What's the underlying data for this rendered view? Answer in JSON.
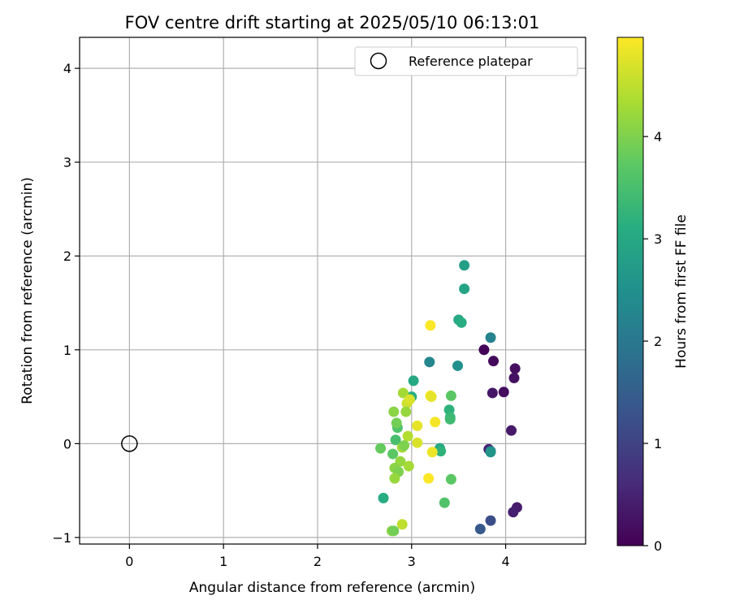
{
  "chart_data": {
    "type": "scatter",
    "title": "FOV centre drift starting at 2025/05/10 06:13:01",
    "xlabel": "Angular distance from reference (arcmin)",
    "ylabel": "Rotation from reference (arcmin)",
    "xlim": [
      -0.53,
      4.85
    ],
    "ylim": [
      -1.07,
      4.33
    ],
    "xticks": [
      "0",
      "1",
      "2",
      "3",
      "4"
    ],
    "yticks": [
      "−1",
      "0",
      "1",
      "2",
      "3",
      "4"
    ],
    "grid": true,
    "legend": {
      "placement": "top-right",
      "entries": [
        "Reference platepar"
      ]
    },
    "reference_point": {
      "x": 0,
      "y": 0,
      "label": "Reference platepar"
    },
    "colorbar": {
      "label": "Hours from first FF file",
      "range": [
        0,
        4.97
      ],
      "ticks": [
        "0",
        "1",
        "2",
        "3",
        "4"
      ],
      "colormap": "viridis"
    },
    "colormap_stops": [
      "#440154",
      "#472c7a",
      "#3b518b",
      "#2c718e",
      "#21908d",
      "#27ad81",
      "#5cc863",
      "#aadc32",
      "#fde725"
    ],
    "points": [
      {
        "x": 3.77,
        "y": 1.0,
        "c": 0.05
      },
      {
        "x": 3.87,
        "y": 0.88,
        "c": 0.1
      },
      {
        "x": 4.1,
        "y": 0.8,
        "c": 0.2
      },
      {
        "x": 4.09,
        "y": 0.7,
        "c": 0.25
      },
      {
        "x": 3.98,
        "y": 0.55,
        "c": 0.15
      },
      {
        "x": 3.86,
        "y": 0.54,
        "c": 0.3
      },
      {
        "x": 4.06,
        "y": 0.14,
        "c": 0.35
      },
      {
        "x": 3.82,
        "y": -0.06,
        "c": 0.5
      },
      {
        "x": 4.12,
        "y": -0.68,
        "c": 0.4
      },
      {
        "x": 4.08,
        "y": -0.73,
        "c": 0.45
      },
      {
        "x": 3.84,
        "y": -0.82,
        "c": 1.2
      },
      {
        "x": 3.73,
        "y": -0.91,
        "c": 1.4
      },
      {
        "x": 3.84,
        "y": -0.08,
        "c": 1.9
      },
      {
        "x": 3.84,
        "y": 1.13,
        "c": 2.2
      },
      {
        "x": 3.19,
        "y": 0.87,
        "c": 2.3
      },
      {
        "x": 3.49,
        "y": 0.83,
        "c": 2.5
      },
      {
        "x": 3.56,
        "y": 1.9,
        "c": 2.8
      },
      {
        "x": 3.56,
        "y": 1.65,
        "c": 2.9
      },
      {
        "x": 3.5,
        "y": 1.32,
        "c": 3.0
      },
      {
        "x": 3.53,
        "y": 1.29,
        "c": 3.1
      },
      {
        "x": 3.02,
        "y": 0.67,
        "c": 3.0
      },
      {
        "x": 3.0,
        "y": 0.5,
        "c": 3.1
      },
      {
        "x": 3.3,
        "y": -0.05,
        "c": 3.0
      },
      {
        "x": 3.31,
        "y": -0.08,
        "c": 3.2
      },
      {
        "x": 3.84,
        "y": -0.09,
        "c": 2.6
      },
      {
        "x": 2.7,
        "y": -0.58,
        "c": 3.1
      },
      {
        "x": 3.4,
        "y": 0.36,
        "c": 3.2
      },
      {
        "x": 3.41,
        "y": 0.28,
        "c": 3.3
      },
      {
        "x": 3.41,
        "y": 0.26,
        "c": 3.4
      },
      {
        "x": 3.42,
        "y": 0.51,
        "c": 3.7
      },
      {
        "x": 3.35,
        "y": -0.63,
        "c": 3.6
      },
      {
        "x": 3.42,
        "y": -0.38,
        "c": 3.7
      },
      {
        "x": 2.67,
        "y": -0.05,
        "c": 3.8
      },
      {
        "x": 2.8,
        "y": -0.11,
        "c": 3.7
      },
      {
        "x": 2.83,
        "y": 0.04,
        "c": 3.5
      },
      {
        "x": 2.85,
        "y": 0.17,
        "c": 3.6
      },
      {
        "x": 2.84,
        "y": 0.22,
        "c": 3.9
      },
      {
        "x": 2.81,
        "y": 0.34,
        "c": 4.1
      },
      {
        "x": 2.91,
        "y": 0.54,
        "c": 4.3
      },
      {
        "x": 2.95,
        "y": 0.43,
        "c": 4.6
      },
      {
        "x": 2.98,
        "y": 0.47,
        "c": 4.7
      },
      {
        "x": 2.94,
        "y": 0.34,
        "c": 4.2
      },
      {
        "x": 2.96,
        "y": 0.08,
        "c": 4.4
      },
      {
        "x": 2.9,
        "y": -0.04,
        "c": 4.3
      },
      {
        "x": 2.92,
        "y": -0.02,
        "c": 4.0
      },
      {
        "x": 2.88,
        "y": -0.19,
        "c": 4.2
      },
      {
        "x": 2.82,
        "y": -0.26,
        "c": 4.1
      },
      {
        "x": 2.86,
        "y": -0.3,
        "c": 4.0
      },
      {
        "x": 2.82,
        "y": -0.37,
        "c": 4.2
      },
      {
        "x": 2.97,
        "y": -0.24,
        "c": 4.3
      },
      {
        "x": 2.9,
        "y": -0.86,
        "c": 4.5
      },
      {
        "x": 2.79,
        "y": -0.93,
        "c": 4.1
      },
      {
        "x": 2.81,
        "y": -0.93,
        "c": 3.9
      },
      {
        "x": 3.2,
        "y": 1.26,
        "c": 4.95
      },
      {
        "x": 3.2,
        "y": 0.51,
        "c": 4.95
      },
      {
        "x": 3.21,
        "y": 0.5,
        "c": 4.8
      },
      {
        "x": 3.06,
        "y": 0.19,
        "c": 4.8
      },
      {
        "x": 3.25,
        "y": 0.23,
        "c": 4.9
      },
      {
        "x": 3.06,
        "y": 0.01,
        "c": 4.7
      },
      {
        "x": 3.22,
        "y": -0.09,
        "c": 4.85
      },
      {
        "x": 3.18,
        "y": -0.37,
        "c": 4.95
      }
    ]
  }
}
